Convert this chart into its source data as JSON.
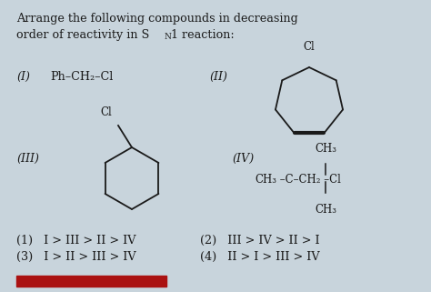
{
  "bg_color": "#c8d4dc",
  "text_color": "#1a1a1a",
  "title1": "Arrange the following compounds in decreasing",
  "title2a": "order of reactivity in S",
  "title2b": "N",
  "title2c": "1 reaction:",
  "label_I": "(I)",
  "compound_I": "Ph–CH₂–Cl",
  "label_II": "(II)",
  "label_III": "(III)",
  "label_IV": "(IV)",
  "iv_top": "CH₃",
  "iv_main": "CH₃ –C–CH₂ –Cl",
  "iv_bot": "CH₃",
  "ans1": "(1)   I > III > II > IV",
  "ans2": "(3)   I > II > III > IV",
  "ans3": "(2)   III > IV > II > I",
  "ans4": "(4)   II > I > III > IV",
  "red_bar_color": "#aa1111"
}
